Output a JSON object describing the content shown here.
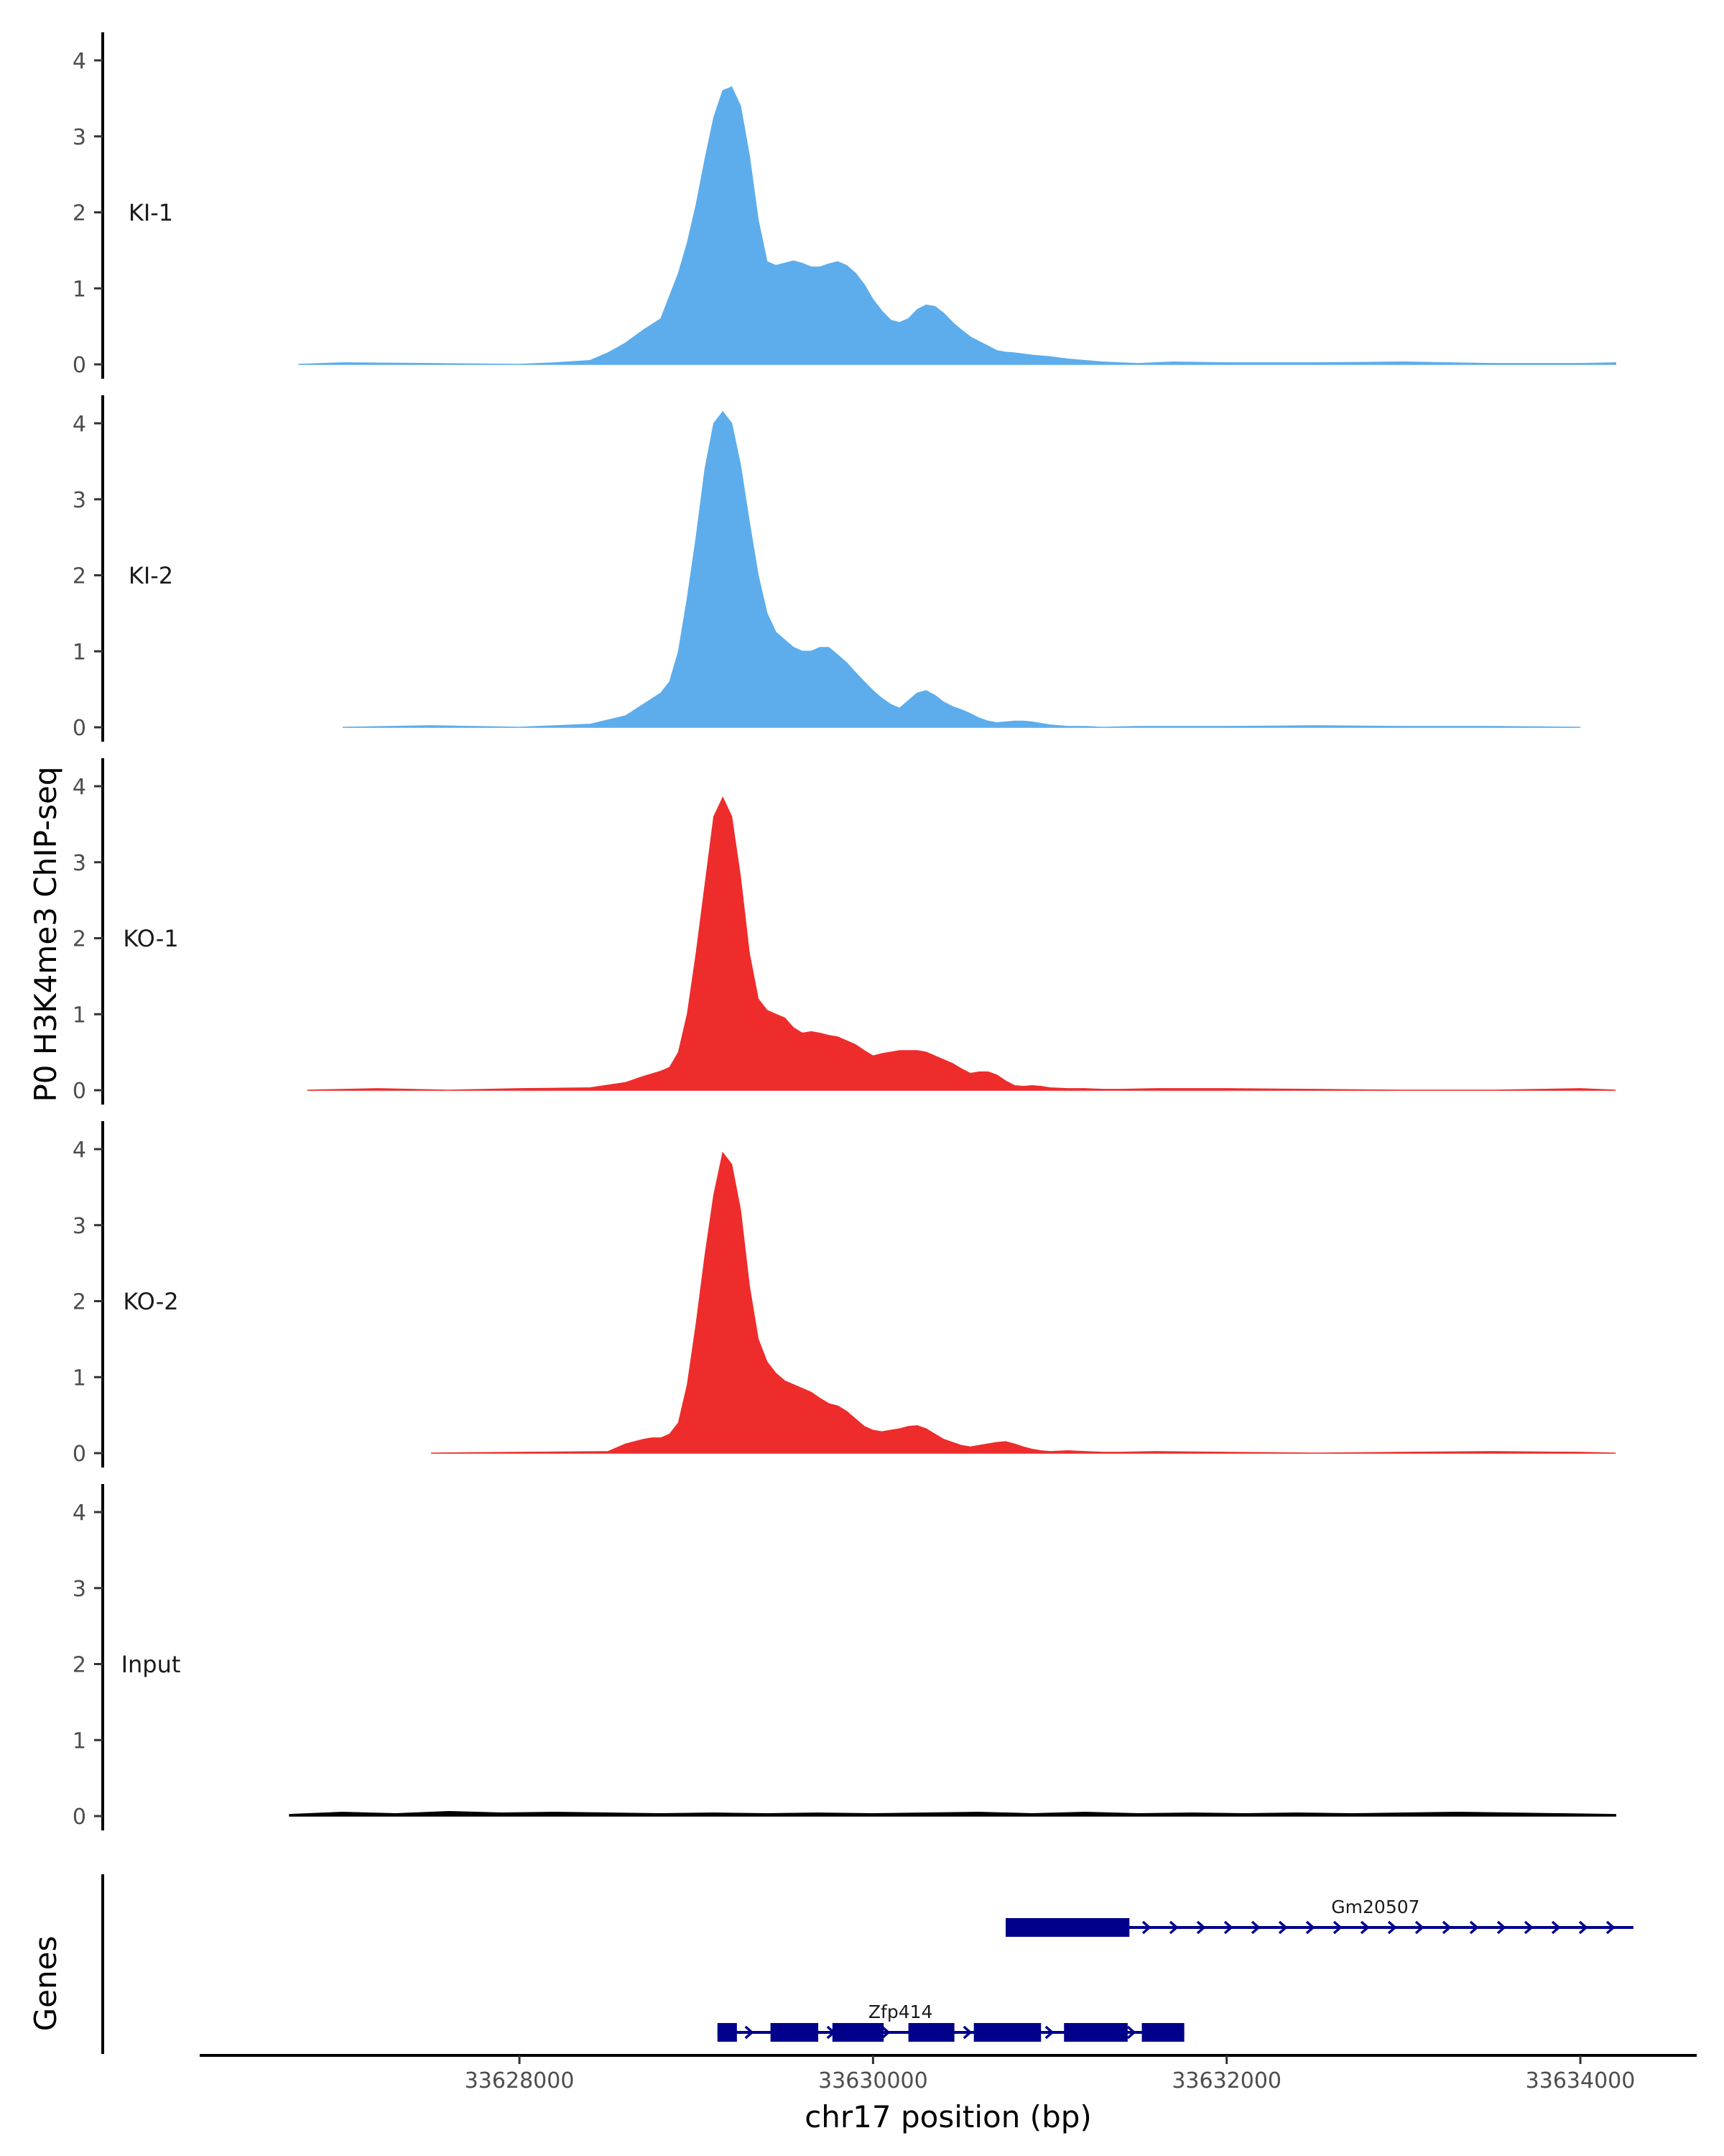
{
  "chart_data": {
    "type": "area",
    "ylabel": "P0 H3K4me3 ChIP-seq",
    "genes_label": "Genes",
    "xlabel": "chr17 position (bp)",
    "xlim": [
      33626200,
      33634650
    ],
    "ylim": [
      0,
      4.35
    ],
    "yticks": [
      0,
      1,
      2,
      3,
      4
    ],
    "yticks_label": [
      "0",
      "1",
      "2",
      "3",
      "4"
    ],
    "xticks": [
      33628000,
      33630000,
      33632000,
      33634000
    ],
    "xticks_label": [
      "33628000",
      "33630000",
      "33632000",
      "33634000"
    ],
    "colors": {
      "KI": "#5DADEC",
      "KO": "#EE2C2C",
      "Input": "#000000",
      "gene": "#00008B"
    },
    "tracks": [
      {
        "name": "KI-1",
        "color": "#5DADEC",
        "x": [
          33626750,
          33627000,
          33627500,
          33628000,
          33628200,
          33628400,
          33628500,
          33628600,
          33628700,
          33628800,
          33628850,
          33628900,
          33628950,
          33629000,
          33629050,
          33629100,
          33629150,
          33629200,
          33629250,
          33629300,
          33629350,
          33629400,
          33629450,
          33629500,
          33629550,
          33629600,
          33629650,
          33629700,
          33629750,
          33629800,
          33629850,
          33629900,
          33629950,
          33630000,
          33630050,
          33630100,
          33630150,
          33630200,
          33630250,
          33630300,
          33630350,
          33630400,
          33630450,
          33630500,
          33630550,
          33630600,
          33630650,
          33630700,
          33630750,
          33630800,
          33630900,
          33631000,
          33631100,
          33631200,
          33631300,
          33631400,
          33631500,
          33631700,
          33632000,
          33632500,
          33633000,
          33633500,
          33634000,
          33634200
        ],
        "y": [
          0.0,
          0.02,
          0.01,
          0.0,
          0.02,
          0.05,
          0.15,
          0.28,
          0.45,
          0.6,
          0.9,
          1.2,
          1.6,
          2.1,
          2.7,
          3.25,
          3.6,
          3.65,
          3.4,
          2.75,
          1.9,
          1.35,
          1.3,
          1.33,
          1.36,
          1.33,
          1.28,
          1.28,
          1.32,
          1.35,
          1.3,
          1.2,
          1.05,
          0.85,
          0.7,
          0.58,
          0.55,
          0.6,
          0.72,
          0.78,
          0.76,
          0.67,
          0.55,
          0.45,
          0.36,
          0.3,
          0.24,
          0.18,
          0.16,
          0.15,
          0.12,
          0.1,
          0.07,
          0.05,
          0.03,
          0.02,
          0.01,
          0.03,
          0.02,
          0.02,
          0.03,
          0.01,
          0.01,
          0.02
        ]
      },
      {
        "name": "KI-2",
        "color": "#5DADEC",
        "x": [
          33627000,
          33627500,
          33628000,
          33628400,
          33628600,
          33628700,
          33628800,
          33628850,
          33628900,
          33628950,
          33629000,
          33629050,
          33629100,
          33629150,
          33629200,
          33629250,
          33629300,
          33629350,
          33629400,
          33629450,
          33629500,
          33629550,
          33629600,
          33629650,
          33629700,
          33629750,
          33629800,
          33629850,
          33629900,
          33629950,
          33630000,
          33630050,
          33630100,
          33630150,
          33630200,
          33630250,
          33630300,
          33630350,
          33630400,
          33630450,
          33630500,
          33630550,
          33630600,
          33630650,
          33630700,
          33630750,
          33630800,
          33630850,
          33630900,
          33630950,
          33631000,
          33631100,
          33631200,
          33631300,
          33631500,
          33632000,
          33632500,
          33633000,
          33633500,
          33634000
        ],
        "y": [
          0.0,
          0.02,
          0.0,
          0.04,
          0.15,
          0.3,
          0.45,
          0.6,
          1.0,
          1.7,
          2.5,
          3.4,
          4.0,
          4.15,
          4.0,
          3.45,
          2.7,
          2.0,
          1.5,
          1.25,
          1.15,
          1.05,
          1.0,
          1.0,
          1.05,
          1.05,
          0.95,
          0.85,
          0.72,
          0.6,
          0.48,
          0.38,
          0.3,
          0.25,
          0.35,
          0.45,
          0.48,
          0.42,
          0.33,
          0.27,
          0.23,
          0.18,
          0.12,
          0.08,
          0.06,
          0.07,
          0.08,
          0.08,
          0.07,
          0.05,
          0.03,
          0.01,
          0.01,
          0.0,
          0.01,
          0.01,
          0.02,
          0.01,
          0.01,
          0.0
        ]
      },
      {
        "name": "KO-1",
        "color": "#EE2C2C",
        "x": [
          33626800,
          33627200,
          33627600,
          33628000,
          33628400,
          33628600,
          33628700,
          33628800,
          33628850,
          33628900,
          33628950,
          33629000,
          33629050,
          33629100,
          33629150,
          33629200,
          33629250,
          33629300,
          33629350,
          33629400,
          33629450,
          33629500,
          33629550,
          33629600,
          33629650,
          33629700,
          33629750,
          33629800,
          33629850,
          33629900,
          33629950,
          33630000,
          33630050,
          33630100,
          33630150,
          33630200,
          33630250,
          33630300,
          33630350,
          33630400,
          33630450,
          33630500,
          33630550,
          33630600,
          33630650,
          33630700,
          33630750,
          33630800,
          33630850,
          33630900,
          33630950,
          33631000,
          33631100,
          33631200,
          33631300,
          33631400,
          33631600,
          33632000,
          33632500,
          33633000,
          33633500,
          33634000,
          33634200
        ],
        "y": [
          0.0,
          0.02,
          0.0,
          0.02,
          0.03,
          0.1,
          0.18,
          0.25,
          0.3,
          0.5,
          1.0,
          1.8,
          2.7,
          3.6,
          3.85,
          3.6,
          2.8,
          1.8,
          1.2,
          1.05,
          1.0,
          0.95,
          0.82,
          0.75,
          0.77,
          0.75,
          0.72,
          0.7,
          0.65,
          0.6,
          0.52,
          0.45,
          0.48,
          0.5,
          0.52,
          0.52,
          0.52,
          0.5,
          0.45,
          0.4,
          0.35,
          0.28,
          0.22,
          0.24,
          0.24,
          0.2,
          0.12,
          0.06,
          0.05,
          0.06,
          0.05,
          0.03,
          0.02,
          0.02,
          0.01,
          0.01,
          0.02,
          0.02,
          0.01,
          0.0,
          0.0,
          0.02,
          0.0
        ]
      },
      {
        "name": "KO-2",
        "color": "#EE2C2C",
        "x": [
          33627500,
          33628000,
          33628500,
          33628600,
          33628700,
          33628750,
          33628800,
          33628850,
          33628900,
          33628950,
          33629000,
          33629050,
          33629100,
          33629150,
          33629200,
          33629250,
          33629300,
          33629350,
          33629400,
          33629450,
          33629500,
          33629550,
          33629600,
          33629650,
          33629700,
          33629750,
          33629800,
          33629850,
          33629900,
          33629950,
          33630000,
          33630050,
          33630100,
          33630150,
          33630200,
          33630250,
          33630300,
          33630350,
          33630400,
          33630450,
          33630500,
          33630550,
          33630600,
          33630650,
          33630700,
          33630750,
          33630800,
          33630850,
          33630900,
          33630950,
          33631000,
          33631100,
          33631200,
          33631300,
          33631400,
          33631600,
          33632000,
          33632500,
          33633000,
          33633500,
          33634000,
          33634200
        ],
        "y": [
          0.0,
          0.01,
          0.02,
          0.12,
          0.18,
          0.2,
          0.2,
          0.25,
          0.4,
          0.9,
          1.7,
          2.6,
          3.4,
          3.95,
          3.8,
          3.2,
          2.2,
          1.5,
          1.2,
          1.05,
          0.95,
          0.9,
          0.85,
          0.8,
          0.72,
          0.65,
          0.62,
          0.55,
          0.45,
          0.35,
          0.3,
          0.28,
          0.3,
          0.32,
          0.35,
          0.36,
          0.32,
          0.25,
          0.18,
          0.14,
          0.1,
          0.08,
          0.1,
          0.12,
          0.14,
          0.15,
          0.12,
          0.08,
          0.05,
          0.03,
          0.02,
          0.03,
          0.02,
          0.01,
          0.01,
          0.02,
          0.01,
          0.0,
          0.01,
          0.02,
          0.01,
          0.0
        ]
      },
      {
        "name": "Input",
        "color": "#000000",
        "x": [
          33626700,
          33627000,
          33627300,
          33627600,
          33627900,
          33628200,
          33628500,
          33628800,
          33629100,
          33629400,
          33629700,
          33630000,
          33630300,
          33630600,
          33630900,
          33631200,
          33631500,
          33631800,
          33632100,
          33632400,
          33632700,
          33633000,
          33633300,
          33633600,
          33633900,
          33634200
        ],
        "y": [
          0.02,
          0.05,
          0.03,
          0.06,
          0.04,
          0.05,
          0.04,
          0.03,
          0.04,
          0.03,
          0.04,
          0.03,
          0.04,
          0.05,
          0.03,
          0.05,
          0.03,
          0.04,
          0.03,
          0.04,
          0.03,
          0.04,
          0.05,
          0.04,
          0.03,
          0.02
        ]
      }
    ],
    "genes": [
      {
        "name": "Zfp414",
        "strand": "+",
        "start": 33629120,
        "end": 33631760,
        "exons": [
          [
            33629120,
            33629230
          ],
          [
            33629420,
            33629690
          ],
          [
            33629770,
            33630060
          ],
          [
            33630200,
            33630460
          ],
          [
            33630570,
            33630950
          ],
          [
            33631080,
            33631440
          ],
          [
            33631520,
            33631760
          ]
        ]
      },
      {
        "name": "Gm20507",
        "strand": "+",
        "start": 33630750,
        "end": 33634300,
        "exons": [
          [
            33630750,
            33631450
          ]
        ]
      }
    ]
  }
}
